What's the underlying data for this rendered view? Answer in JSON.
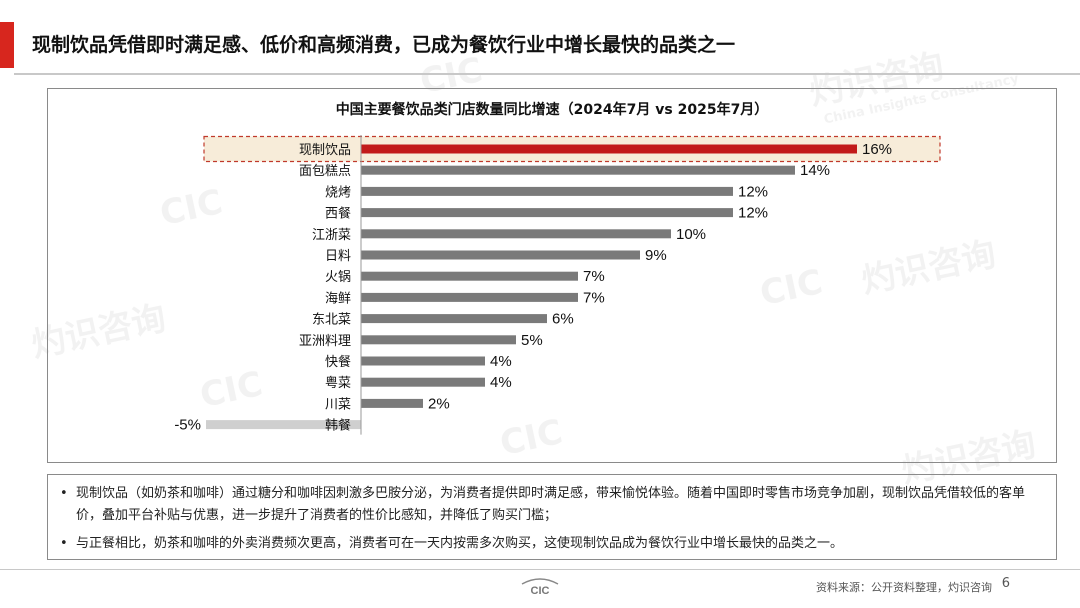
{
  "header": {
    "title": "现制饮品凭借即时满足感、低价和高频消费，已成为餐饮行业中增长最快的品类之一"
  },
  "chart_data": {
    "type": "bar",
    "orientation": "horizontal",
    "title": "中国主要餐饮品类门店数量同比增速（2024年7月 vs 2025年7月）",
    "xlabel": "",
    "ylabel": "",
    "categories": [
      "现制饮品",
      "面包糕点",
      "烧烤",
      "西餐",
      "江浙菜",
      "日料",
      "火锅",
      "海鲜",
      "东北菜",
      "亚洲料理",
      "快餐",
      "粤菜",
      "川菜",
      "韩餐"
    ],
    "values": [
      16,
      14,
      12,
      12,
      10,
      9,
      7,
      7,
      6,
      5,
      4,
      4,
      2,
      -5
    ],
    "value_labels": [
      "16%",
      "14%",
      "12%",
      "12%",
      "10%",
      "9%",
      "7%",
      "7%",
      "6%",
      "5%",
      "4%",
      "4%",
      "2%",
      "-5%"
    ],
    "highlight_index": 0,
    "xlim": [
      -5,
      16
    ],
    "grid": false,
    "legend": "none",
    "colors": {
      "highlight": "#c21a1a",
      "bar": "#7a7a7a",
      "negative": "#cfcfcf",
      "highlight_box_fill": "#f7ecd9",
      "highlight_box_border": "#c0392b"
    }
  },
  "notes": [
    "现制饮品（如奶茶和咖啡）通过糖分和咖啡因刺激多巴胺分泌，为消费者提供即时满足感，带来愉悦体验。随着中国即时零售市场竞争加剧，现制饮品凭借较低的客单价，叠加平台补贴与优惠，进一步提升了消费者的性价比感知，并降低了购买门槛；",
    "与正餐相比，奶茶和咖啡的外卖消费频次更高，消费者可在一天内按需多次购买，这使现制饮品成为餐饮行业中增长最快的品类之一。"
  ],
  "bullet_symbol": "•",
  "footer": {
    "source": "资料来源：公开资料整理，灼识咨询",
    "page_number": "6",
    "logo_text": "CIC"
  },
  "watermarks": [
    "CIC",
    "灼识咨询",
    "China Insights Consultancy"
  ]
}
